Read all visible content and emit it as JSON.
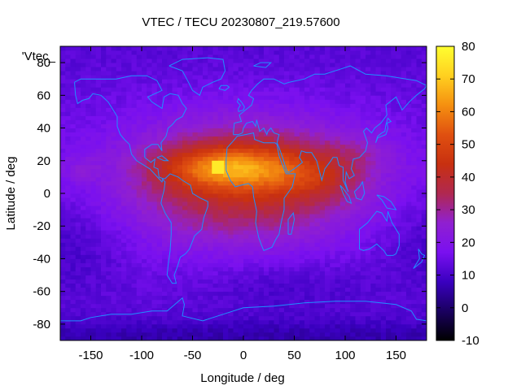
{
  "chart_data": {
    "type": "heatmap",
    "title": "VTEC / TECU 20230807_219.57600",
    "xlabel": "Longitude / deg",
    "ylabel": "Latitude / deg",
    "series_key": "'Vtec_",
    "xlim": [
      -180,
      180
    ],
    "ylim": [
      -90,
      90
    ],
    "xticks": [
      -150,
      -100,
      -50,
      0,
      50,
      100,
      150
    ],
    "yticks": [
      -80,
      -60,
      -40,
      -20,
      0,
      20,
      40,
      60,
      80
    ],
    "colorbar": {
      "min": -10,
      "max": 80,
      "ticks": [
        -10,
        0,
        10,
        20,
        30,
        40,
        50,
        60,
        70,
        80
      ],
      "palette": [
        "#000000",
        "#1a0060",
        "#3a00c0",
        "#7a10f0",
        "#9020d0",
        "#b02850",
        "#c83010",
        "#e05010",
        "#f59010",
        "#ffd020",
        "#ffff30"
      ]
    },
    "coastline_color": "#1f8fff",
    "anomaly_peak": {
      "lon": -25,
      "lat": 16,
      "vtec": 76
    }
  }
}
